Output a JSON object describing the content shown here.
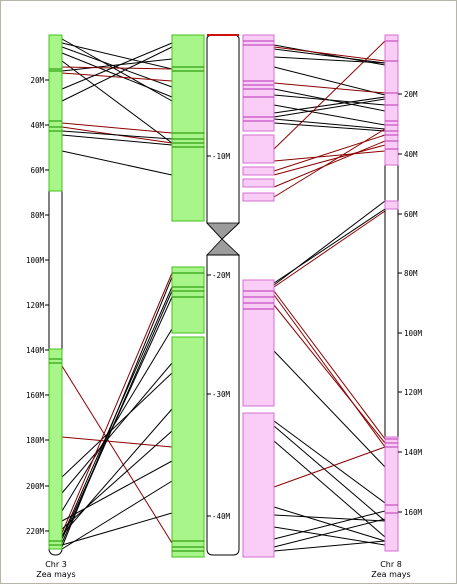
{
  "colors": {
    "green": "#a8f58a",
    "green_edge": "#43c21a",
    "green_band": "#2f9f10",
    "pink": "#f9cdf6",
    "pink_edge": "#d46fd0",
    "pink_band": "#c64fc2",
    "black_link": "#000000",
    "red_link": "#8b0000",
    "centromere": "#9c9c9c"
  },
  "left_chromosome": {
    "name": "Chr 3",
    "species": "Zea mays",
    "ticks": [
      "20M",
      "40M",
      "60M",
      "80M",
      "100M",
      "120M",
      "140M",
      "160M",
      "180M",
      "200M",
      "220M"
    ]
  },
  "right_chromosome": {
    "name": "Chr 8",
    "species": "Zea mays",
    "ticks": [
      "20M",
      "40M",
      "60M",
      "80M",
      "100M",
      "120M",
      "140M",
      "160M"
    ]
  },
  "center_chromosome": {
    "ticks": [
      "10M",
      "20M",
      "30M",
      "40M"
    ]
  }
}
